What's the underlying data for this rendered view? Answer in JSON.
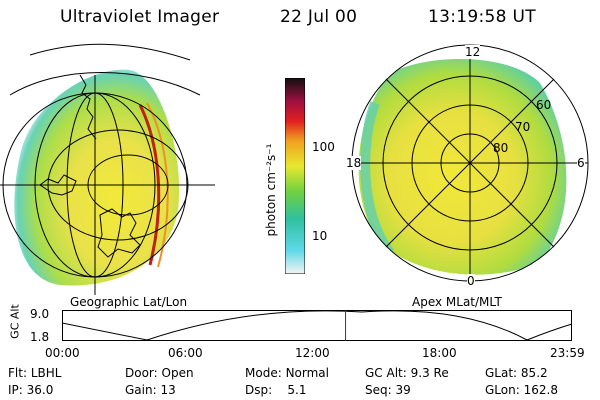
{
  "header": {
    "instrument": "Ultraviolet Imager",
    "date": "22 Jul 00",
    "time": "13:19:58 UT"
  },
  "panels": {
    "left_caption": "Geographic Lat/Lon",
    "right_caption": "Apex MLat/MLT",
    "mlt_labels": [
      "12",
      "18",
      "6",
      "0"
    ],
    "mlat_labels": [
      "60",
      "70",
      "80"
    ]
  },
  "colorbar": {
    "label": "photon cm⁻²s⁻¹",
    "ticks": [
      "100",
      "10"
    ]
  },
  "altitude_plot": {
    "ylabel": "GC Alt",
    "ytick_top": "9.0",
    "ytick_bottom": "1.8",
    "xticks": [
      "00:00",
      "06:00",
      "12:00",
      "18:00",
      "23:59"
    ],
    "marker_time_fraction": 0.556
  },
  "info": {
    "row1": [
      {
        "label": "Flt:",
        "value": "LBHL"
      },
      {
        "label": "Door:",
        "value": "Open"
      },
      {
        "label": "Mode:",
        "value": "Normal"
      },
      {
        "label": "GC Alt:",
        "value": "9.3 Re"
      },
      {
        "label": "GLat:",
        "value": "85.2"
      }
    ],
    "row2": [
      {
        "label": "IP:",
        "value": "36.0"
      },
      {
        "label": "Gain:",
        "value": "13"
      },
      {
        "label": "Dsp:",
        "value": "5.1"
      },
      {
        "label": "Seq:",
        "value": "39"
      },
      {
        "label": "GLon:",
        "value": "162.8"
      }
    ]
  },
  "colors": {
    "marker": "#c00000",
    "emission_bright": "#f0d020",
    "emission_mid": "#90d040",
    "emission_low": "#40c8c0"
  }
}
